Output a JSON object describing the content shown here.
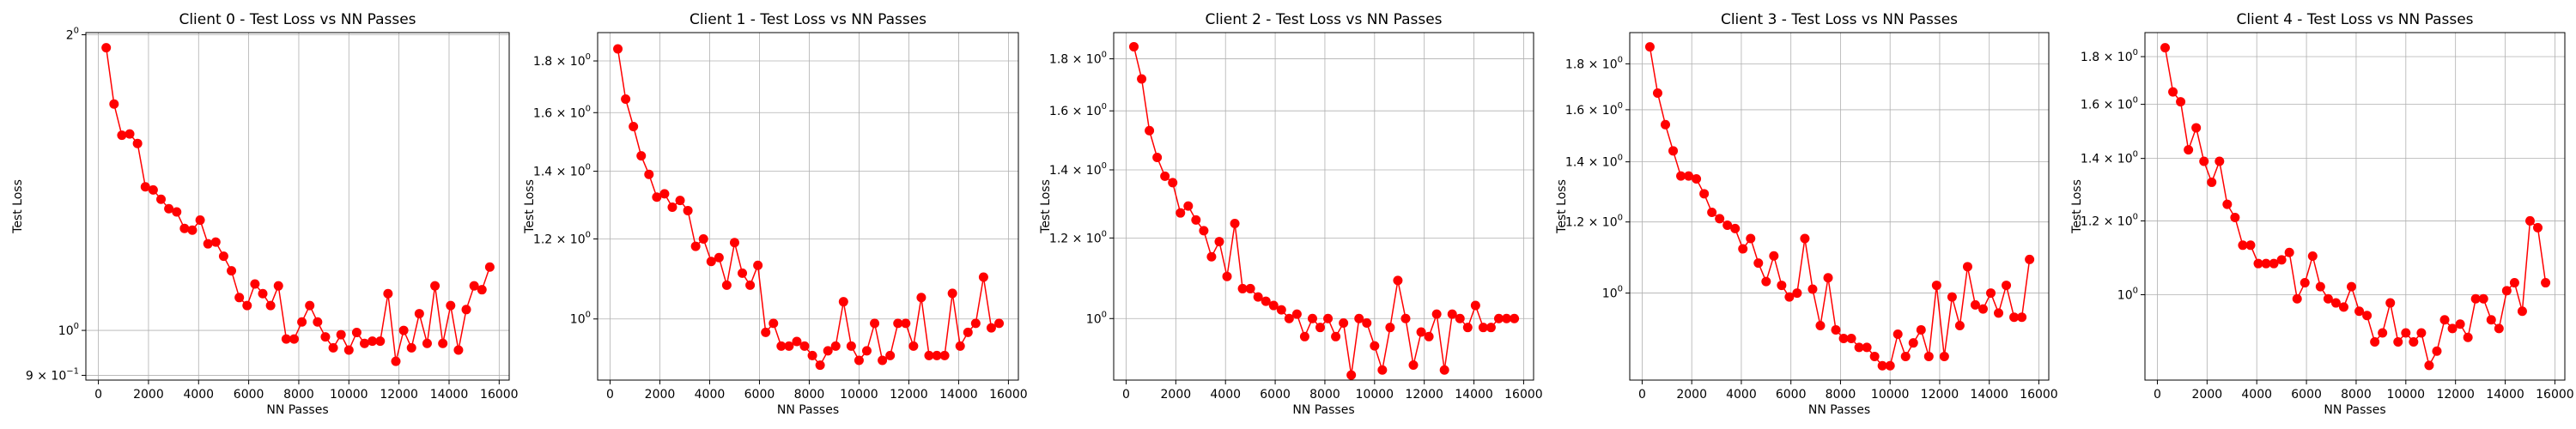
{
  "chart_data": [
    {
      "type": "line",
      "title": "Client 0 - Test Loss vs NN Passes",
      "xlabel": "NN Passes",
      "ylabel": "Test Loss",
      "xlim": [
        -500,
        16400
      ],
      "ylim": [
        0.89,
        2.01
      ],
      "yscale": "log",
      "grid": true,
      "xticks": [
        0,
        2000,
        4000,
        6000,
        8000,
        10000,
        12000,
        14000,
        16000
      ],
      "yticks": [
        {
          "value": 2.0,
          "base": "2",
          "exp": "0"
        },
        {
          "value": 1.0,
          "base": "10",
          "exp": "0"
        },
        {
          "value": 0.9,
          "base": "9",
          "exp": "−1",
          "mult": "10"
        }
      ],
      "color": "#ff0000",
      "x": [
        312,
        625,
        937,
        1250,
        1562,
        1875,
        2187,
        2500,
        2812,
        3125,
        3437,
        3750,
        4062,
        4375,
        4687,
        5000,
        5312,
        5625,
        5937,
        6250,
        6562,
        6875,
        7187,
        7500,
        7812,
        8125,
        8437,
        8750,
        9062,
        9375,
        9687,
        10000,
        10312,
        10625,
        10937,
        11250,
        11562,
        11875,
        12187,
        12500,
        12812,
        13125,
        13437,
        13750,
        14062,
        14375,
        14687,
        15000,
        15312,
        15625
      ],
      "y": [
        1.94,
        1.7,
        1.58,
        1.585,
        1.55,
        1.4,
        1.39,
        1.36,
        1.33,
        1.32,
        1.27,
        1.265,
        1.295,
        1.225,
        1.23,
        1.19,
        1.15,
        1.08,
        1.06,
        1.115,
        1.09,
        1.06,
        1.11,
        0.98,
        0.98,
        1.02,
        1.06,
        1.02,
        0.985,
        0.96,
        0.99,
        0.955,
        0.995,
        0.97,
        0.975,
        0.975,
        1.09,
        0.93,
        1.0,
        0.96,
        1.04,
        0.97,
        1.11,
        0.97,
        1.06,
        0.955,
        1.05,
        1.11,
        1.1,
        1.16
      ]
    },
    {
      "type": "line",
      "title": "Client 1 - Test Loss vs NN Passes",
      "xlabel": "NN Passes",
      "ylabel": "Test Loss",
      "xlim": [
        -500,
        16400
      ],
      "ylim": [
        0.87,
        1.92
      ],
      "yscale": "log",
      "grid": true,
      "xticks": [
        0,
        2000,
        4000,
        6000,
        8000,
        10000,
        12000,
        14000,
        16000
      ],
      "yticks": [
        {
          "value": 1.8,
          "base": "1.8",
          "exp": "0",
          "mult": "10"
        },
        {
          "value": 1.6,
          "base": "1.6",
          "exp": "0",
          "mult": "10"
        },
        {
          "value": 1.4,
          "base": "1.4",
          "exp": "0",
          "mult": "10"
        },
        {
          "value": 1.2,
          "base": "1.2",
          "exp": "0",
          "mult": "10"
        },
        {
          "value": 1.0,
          "base": "10",
          "exp": "0"
        }
      ],
      "color": "#ff0000",
      "x": [
        312,
        625,
        937,
        1250,
        1562,
        1875,
        2187,
        2500,
        2812,
        3125,
        3437,
        3750,
        4062,
        4375,
        4687,
        5000,
        5312,
        5625,
        5937,
        6250,
        6562,
        6875,
        7187,
        7500,
        7812,
        8125,
        8437,
        8750,
        9062,
        9375,
        9687,
        10000,
        10312,
        10625,
        10937,
        11250,
        11562,
        11875,
        12187,
        12500,
        12812,
        13125,
        13437,
        13750,
        14062,
        14375,
        14687,
        15000,
        15312,
        15625
      ],
      "y": [
        1.85,
        1.65,
        1.55,
        1.45,
        1.39,
        1.32,
        1.33,
        1.29,
        1.31,
        1.28,
        1.18,
        1.2,
        1.14,
        1.15,
        1.08,
        1.19,
        1.11,
        1.08,
        1.13,
        0.97,
        0.99,
        0.94,
        0.94,
        0.95,
        0.94,
        0.92,
        0.9,
        0.93,
        0.94,
        1.04,
        0.94,
        0.91,
        0.93,
        0.99,
        0.91,
        0.92,
        0.99,
        0.99,
        0.94,
        1.05,
        0.92,
        0.92,
        0.92,
        1.06,
        0.94,
        0.97,
        0.99,
        1.1,
        0.98,
        0.99
      ]
    },
    {
      "type": "line",
      "title": "Client 2 - Test Loss vs NN Passes",
      "xlabel": "NN Passes",
      "ylabel": "Test Loss",
      "xlim": [
        -500,
        16400
      ],
      "ylim": [
        0.87,
        1.91
      ],
      "yscale": "log",
      "grid": true,
      "xticks": [
        0,
        2000,
        4000,
        6000,
        8000,
        10000,
        12000,
        14000,
        16000
      ],
      "yticks": [
        {
          "value": 1.8,
          "base": "1.8",
          "exp": "0",
          "mult": "10"
        },
        {
          "value": 1.6,
          "base": "1.6",
          "exp": "0",
          "mult": "10"
        },
        {
          "value": 1.4,
          "base": "1.4",
          "exp": "0",
          "mult": "10"
        },
        {
          "value": 1.2,
          "base": "1.2",
          "exp": "0",
          "mult": "10"
        },
        {
          "value": 1.0,
          "base": "10",
          "exp": "0"
        }
      ],
      "color": "#ff0000",
      "x": [
        312,
        625,
        937,
        1250,
        1562,
        1875,
        2187,
        2500,
        2812,
        3125,
        3437,
        3750,
        4062,
        4375,
        4687,
        5000,
        5312,
        5625,
        5937,
        6250,
        6562,
        6875,
        7187,
        7500,
        7812,
        8125,
        8437,
        8750,
        9062,
        9375,
        9687,
        10000,
        10312,
        10625,
        10937,
        11250,
        11562,
        11875,
        12187,
        12500,
        12812,
        13125,
        13437,
        13750,
        14062,
        14375,
        14687,
        15000,
        15312,
        15625
      ],
      "y": [
        1.85,
        1.72,
        1.53,
        1.44,
        1.38,
        1.36,
        1.27,
        1.29,
        1.25,
        1.22,
        1.15,
        1.19,
        1.1,
        1.24,
        1.07,
        1.07,
        1.05,
        1.04,
        1.03,
        1.02,
        1.0,
        1.01,
        0.96,
        1.0,
        0.98,
        1.0,
        0.96,
        0.99,
        0.88,
        1.0,
        0.99,
        0.94,
        0.89,
        0.98,
        1.09,
        1.0,
        0.9,
        0.97,
        0.96,
        1.01,
        0.89,
        1.01,
        1.0,
        0.98,
        1.03,
        0.98,
        0.98,
        1.0,
        1.0,
        1.0
      ]
    },
    {
      "type": "line",
      "title": "Client 3 - Test Loss vs NN Passes",
      "xlabel": "NN Passes",
      "ylabel": "Test Loss",
      "xlim": [
        -500,
        16400
      ],
      "ylim": [
        0.8,
        1.95
      ],
      "yscale": "log",
      "grid": true,
      "xticks": [
        0,
        2000,
        4000,
        6000,
        8000,
        10000,
        12000,
        14000,
        16000
      ],
      "yticks": [
        {
          "value": 1.8,
          "base": "1.8",
          "exp": "0",
          "mult": "10"
        },
        {
          "value": 1.6,
          "base": "1.6",
          "exp": "0",
          "mult": "10"
        },
        {
          "value": 1.4,
          "base": "1.4",
          "exp": "0",
          "mult": "10"
        },
        {
          "value": 1.2,
          "base": "1.2",
          "exp": "0",
          "mult": "10"
        },
        {
          "value": 1.0,
          "base": "10",
          "exp": "0"
        }
      ],
      "color": "#ff0000",
      "x": [
        312,
        625,
        937,
        1250,
        1562,
        1875,
        2187,
        2500,
        2812,
        3125,
        3437,
        3750,
        4062,
        4375,
        4687,
        5000,
        5312,
        5625,
        5937,
        6250,
        6562,
        6875,
        7187,
        7500,
        7812,
        8125,
        8437,
        8750,
        9062,
        9375,
        9687,
        10000,
        10312,
        10625,
        10937,
        11250,
        11562,
        11875,
        12187,
        12500,
        12812,
        13125,
        13437,
        13750,
        14062,
        14375,
        14687,
        15000,
        15312,
        15625
      ],
      "y": [
        1.88,
        1.67,
        1.54,
        1.44,
        1.35,
        1.35,
        1.34,
        1.29,
        1.23,
        1.21,
        1.19,
        1.18,
        1.12,
        1.15,
        1.08,
        1.03,
        1.1,
        1.02,
        0.99,
        1.0,
        1.15,
        1.01,
        0.92,
        1.04,
        0.91,
        0.89,
        0.89,
        0.87,
        0.87,
        0.85,
        0.83,
        0.83,
        0.9,
        0.85,
        0.88,
        0.91,
        0.85,
        1.02,
        0.85,
        0.99,
        0.92,
        1.07,
        0.97,
        0.96,
        1.0,
        0.95,
        1.02,
        0.94,
        0.94,
        1.09
      ]
    },
    {
      "type": "line",
      "title": "Client 4 - Test Loss vs NN Passes",
      "xlabel": "NN Passes",
      "ylabel": "Test Loss",
      "xlim": [
        -500,
        16400
      ],
      "ylim": [
        0.81,
        1.91
      ],
      "yscale": "log",
      "grid": true,
      "xticks": [
        0,
        2000,
        4000,
        6000,
        8000,
        10000,
        12000,
        14000,
        16000
      ],
      "yticks": [
        {
          "value": 1.8,
          "base": "1.8",
          "exp": "0",
          "mult": "10"
        },
        {
          "value": 1.6,
          "base": "1.6",
          "exp": "0",
          "mult": "10"
        },
        {
          "value": 1.4,
          "base": "1.4",
          "exp": "0",
          "mult": "10"
        },
        {
          "value": 1.2,
          "base": "1.2",
          "exp": "0",
          "mult": "10"
        },
        {
          "value": 1.0,
          "base": "10",
          "exp": "0"
        }
      ],
      "color": "#ff0000",
      "x": [
        312,
        625,
        937,
        1250,
        1562,
        1875,
        2187,
        2500,
        2812,
        3125,
        3437,
        3750,
        4062,
        4375,
        4687,
        5000,
        5312,
        5625,
        5937,
        6250,
        6562,
        6875,
        7187,
        7500,
        7812,
        8125,
        8437,
        8750,
        9062,
        9375,
        9687,
        10000,
        10312,
        10625,
        10937,
        11250,
        11562,
        11875,
        12187,
        12500,
        12812,
        13125,
        13437,
        13750,
        14062,
        14375,
        14687,
        15000,
        15312,
        15625
      ],
      "y": [
        1.84,
        1.65,
        1.61,
        1.43,
        1.51,
        1.39,
        1.32,
        1.39,
        1.25,
        1.21,
        1.13,
        1.13,
        1.08,
        1.08,
        1.08,
        1.09,
        1.11,
        0.99,
        1.03,
        1.1,
        1.02,
        0.99,
        0.98,
        0.97,
        1.02,
        0.96,
        0.95,
        0.89,
        0.91,
        0.98,
        0.89,
        0.91,
        0.89,
        0.91,
        0.84,
        0.87,
        0.94,
        0.92,
        0.93,
        0.9,
        0.99,
        0.99,
        0.94,
        0.92,
        1.01,
        1.03,
        0.96,
        1.2,
        1.18,
        1.03
      ]
    }
  ]
}
